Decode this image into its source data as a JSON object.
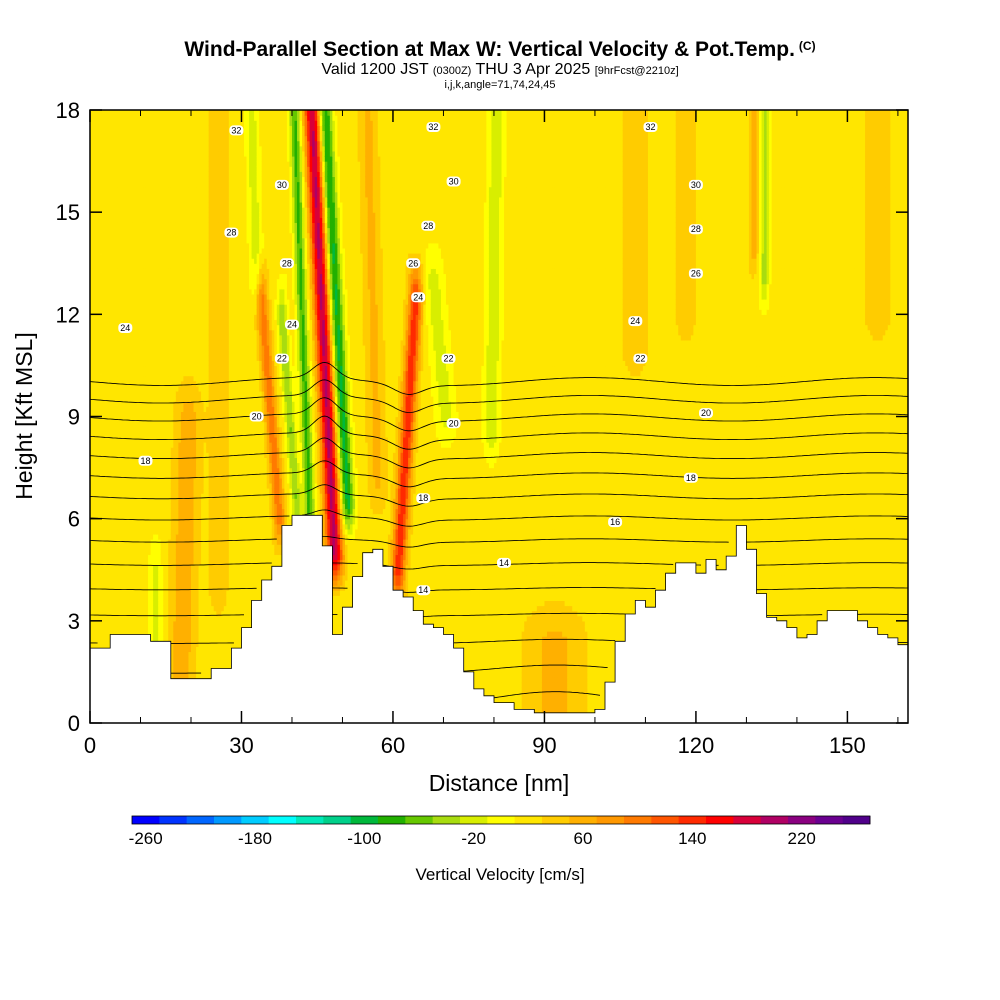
{
  "title": {
    "main": "Wind-Parallel Section at Max W: Vertical Velocity & Pot.Temp.",
    "main_suffix": "(C)",
    "valid_prefix": "Valid 1200 JST",
    "valid_zulu": "(0300Z)",
    "valid_date": "THU 3 Apr 2025",
    "forecast": "[9hrFcst@2210z]",
    "indices": "i,j,k,angle=71,74,24,45"
  },
  "chart_data": {
    "type": "heatmap",
    "xlabel": "Distance [nm]",
    "ylabel": "Height [Kft MSL]",
    "xlim": [
      0,
      162
    ],
    "ylim": [
      0,
      18
    ],
    "x_ticks": [
      "0",
      "30",
      "60",
      "90",
      "120",
      "150"
    ],
    "x_tick_values": [
      0,
      30,
      60,
      90,
      120,
      150
    ],
    "y_ticks": [
      "0",
      "3",
      "6",
      "9",
      "12",
      "15",
      "18"
    ],
    "y_tick_values": [
      0,
      3,
      6,
      9,
      12,
      15,
      18
    ],
    "terrain": {
      "x": [
        0,
        4,
        8,
        12,
        16,
        20,
        24,
        28,
        30,
        32,
        34,
        36,
        38,
        40,
        44,
        46,
        48,
        50,
        52,
        54,
        56,
        58,
        60,
        62,
        64,
        66,
        68,
        70,
        72,
        74,
        76,
        78,
        80,
        84,
        88,
        92,
        96,
        100,
        102,
        104,
        106,
        108,
        110,
        112,
        114,
        116,
        118,
        120,
        122,
        124,
        126,
        128,
        130,
        132,
        134,
        136,
        138,
        140,
        142,
        144,
        146,
        148,
        150,
        152,
        154,
        156,
        158,
        160,
        162
      ],
      "y": [
        2.2,
        2.6,
        2.6,
        2.4,
        1.3,
        1.3,
        1.6,
        2.2,
        2.8,
        3.6,
        4.2,
        4.6,
        5.8,
        6.1,
        6.1,
        5.2,
        2.6,
        3.4,
        4.3,
        5.0,
        5.1,
        4.6,
        3.9,
        3.7,
        3.3,
        2.9,
        2.8,
        2.6,
        2.2,
        1.5,
        1.0,
        0.8,
        0.6,
        0.4,
        0.3,
        0.3,
        0.3,
        0.4,
        1.2,
        2.4,
        3.2,
        3.6,
        3.4,
        3.9,
        4.4,
        4.7,
        4.7,
        4.4,
        4.8,
        4.5,
        4.9,
        5.8,
        5.1,
        3.8,
        3.1,
        3.0,
        2.8,
        2.5,
        2.6,
        3.0,
        3.3,
        3.3,
        3.3,
        3.0,
        2.8,
        2.6,
        2.5,
        2.3,
        2.2
      ]
    },
    "vertical_velocity_cm_s": {
      "background": 10,
      "features": [
        {
          "x0": 48.5,
          "x1": 44.0,
          "ybot": 4.9,
          "ytop": 18,
          "amp": 175,
          "w": 1.6
        },
        {
          "x0": 51.0,
          "x1": 46.5,
          "ybot": 6.4,
          "ytop": 18,
          "amp": -120,
          "w": 1.4
        },
        {
          "x0": 43.5,
          "x1": 40.5,
          "ybot": 6.2,
          "ytop": 18,
          "amp": -95,
          "w": 1.1
        },
        {
          "x0": 41.0,
          "x1": 38.0,
          "ybot": 6.2,
          "ytop": 12,
          "amp": -70,
          "w": 1.0
        },
        {
          "x0": 61.0,
          "x1": 64.5,
          "ybot": 4.4,
          "ytop": 12.5,
          "amp": 125,
          "w": 1.4
        },
        {
          "x0": 37.5,
          "x1": 34.0,
          "ybot": 6.0,
          "ytop": 12.5,
          "amp": 85,
          "w": 1.2
        },
        {
          "x0": 79.5,
          "x1": 80.5,
          "ybot": 8.5,
          "ytop": 18,
          "amp": -45,
          "w": 1.6
        },
        {
          "x0": 70.5,
          "x1": 68.0,
          "ybot": 9.0,
          "ytop": 13,
          "amp": -40,
          "w": 2.0
        },
        {
          "x0": 33.0,
          "x1": 32.0,
          "ybot": 13,
          "ytop": 18,
          "amp": -40,
          "w": 1.3
        },
        {
          "x0": 133.5,
          "x1": 133.5,
          "ybot": 13,
          "ytop": 18,
          "amp": -55,
          "w": 1.0
        },
        {
          "x0": 131.5,
          "x1": 131.5,
          "ybot": 14,
          "ytop": 18,
          "amp": 45,
          "w": 1.0
        },
        {
          "x0": 18.0,
          "x1": 19.5,
          "ybot": 1.3,
          "ytop": 9,
          "amp": 45,
          "w": 2.5
        },
        {
          "x0": 13.0,
          "x1": 13.0,
          "ybot": 2.0,
          "ytop": 4.5,
          "amp": -35,
          "w": 1.3
        },
        {
          "x0": 25.5,
          "x1": 25.5,
          "ybot": 4,
          "ytop": 18,
          "amp": 30,
          "w": 1.8
        },
        {
          "x0": 57.0,
          "x1": 55.0,
          "ybot": 7,
          "ytop": 18,
          "amp": 35,
          "w": 1.8
        },
        {
          "x0": 108.0,
          "x1": 108.0,
          "ybot": 11,
          "ytop": 18,
          "amp": 30,
          "w": 2.5
        },
        {
          "x0": 118.0,
          "x1": 118.0,
          "ybot": 12,
          "ytop": 18,
          "amp": 28,
          "w": 2.0
        },
        {
          "x0": 92.0,
          "x1": 92.0,
          "ybot": 0.3,
          "ytop": 2.5,
          "amp": 35,
          "w": 6.0
        },
        {
          "x0": 156.0,
          "x1": 156.0,
          "ybot": 12,
          "ytop": 18,
          "amp": 28,
          "w": 2.5
        }
      ]
    },
    "theta_contours_c": {
      "levels": [
        7,
        8,
        9,
        10,
        11,
        12,
        13,
        14,
        15,
        16,
        17,
        18,
        19,
        20,
        21,
        22,
        23,
        24,
        25,
        26,
        27,
        28,
        29,
        30,
        31,
        32,
        33
      ],
      "labeled_levels": [
        14,
        16,
        18,
        20,
        22,
        24,
        26,
        28,
        30,
        32
      ],
      "labels": [
        {
          "text": "32",
          "x": 29,
          "y": 17.4
        },
        {
          "text": "32",
          "x": 68,
          "y": 17.5
        },
        {
          "text": "32",
          "x": 111,
          "y": 17.5
        },
        {
          "text": "30",
          "x": 38,
          "y": 15.8
        },
        {
          "text": "30",
          "x": 72,
          "y": 15.9
        },
        {
          "text": "30",
          "x": 120,
          "y": 15.8
        },
        {
          "text": "28",
          "x": 28,
          "y": 14.4
        },
        {
          "text": "28",
          "x": 39,
          "y": 13.5
        },
        {
          "text": "28",
          "x": 67,
          "y": 14.6
        },
        {
          "text": "28",
          "x": 120,
          "y": 14.5
        },
        {
          "text": "26",
          "x": 64,
          "y": 13.5
        },
        {
          "text": "26",
          "x": 120,
          "y": 13.2
        },
        {
          "text": "24",
          "x": 7,
          "y": 11.6
        },
        {
          "text": "24",
          "x": 40,
          "y": 11.7
        },
        {
          "text": "24",
          "x": 65,
          "y": 12.5
        },
        {
          "text": "24",
          "x": 108,
          "y": 11.8
        },
        {
          "text": "22",
          "x": 38,
          "y": 10.7
        },
        {
          "text": "22",
          "x": 71,
          "y": 10.7
        },
        {
          "text": "22",
          "x": 109,
          "y": 10.7
        },
        {
          "text": "20",
          "x": 33,
          "y": 9.0
        },
        {
          "text": "20",
          "x": 72,
          "y": 8.8
        },
        {
          "text": "20",
          "x": 122,
          "y": 9.1
        },
        {
          "text": "18",
          "x": 11,
          "y": 7.7
        },
        {
          "text": "18",
          "x": 66,
          "y": 6.6
        },
        {
          "text": "18",
          "x": 119,
          "y": 7.2
        },
        {
          "text": "16",
          "x": 104,
          "y": 5.9
        },
        {
          "text": "14",
          "x": 82,
          "y": 4.7
        },
        {
          "text": "14",
          "x": 66,
          "y": 3.9
        }
      ]
    }
  },
  "colorbar": {
    "label": "Vertical Velocity [cm/s]",
    "tick_labels": [
      "-260",
      "-180",
      "-100",
      "-20",
      "60",
      "140",
      "220"
    ],
    "colors": [
      "#0000ff",
      "#0033ff",
      "#0066ff",
      "#0099ff",
      "#00ccff",
      "#00ffff",
      "#00e8b8",
      "#00d08a",
      "#00b83c",
      "#22b000",
      "#66c800",
      "#a8dc10",
      "#d8ee00",
      "#ffff00",
      "#ffe600",
      "#ffcc00",
      "#ffb000",
      "#ff9800",
      "#ff7a00",
      "#ff5500",
      "#ff2a00",
      "#ff0000",
      "#d8003a",
      "#b00064",
      "#8a0080",
      "#6a0090",
      "#50008a"
    ]
  }
}
